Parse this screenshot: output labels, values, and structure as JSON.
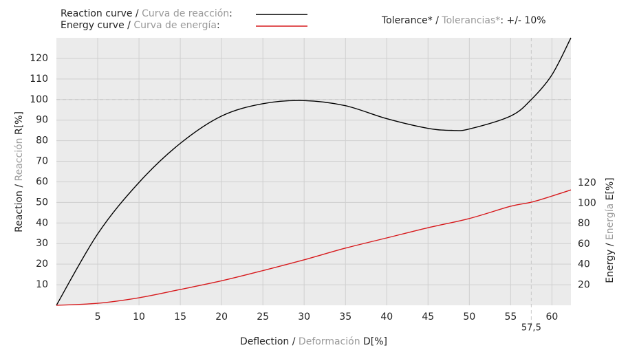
{
  "chart_data": {
    "type": "line",
    "x_label": "Deflection / Deformación D[%]",
    "y_label": "Reaction / Reacción R[%]",
    "y2_label": "Energy / Energía E[%]",
    "annotation": "Tolerance* / Tolerancias*: +/- 10%",
    "xlim": [
      0,
      62.3
    ],
    "xticks": [
      5,
      10,
      15,
      20,
      25,
      30,
      35,
      40,
      45,
      50,
      55,
      60
    ],
    "x_marker": {
      "value": 57.5,
      "label": "57,5"
    },
    "ylim": [
      0,
      130
    ],
    "yticks": [
      10,
      20,
      30,
      40,
      50,
      60,
      70,
      80,
      90,
      100,
      110,
      120
    ],
    "y_marker": 100,
    "y2lim": [
      0,
      262
    ],
    "y2ticks": [
      20,
      40,
      60,
      80,
      100,
      120
    ],
    "grid": true,
    "series": [
      {
        "name": "Reaction curve / Curva de reacción:",
        "color": "#000000",
        "x": [
          0,
          5,
          10,
          15,
          20,
          25,
          30,
          35,
          40,
          45,
          48,
          50,
          55,
          57.5,
          60,
          62.3
        ],
        "values": [
          0,
          34.7,
          59.7,
          78.7,
          92,
          98,
          99.5,
          97,
          90.7,
          86,
          85,
          85.7,
          92,
          100,
          112,
          130
        ]
      },
      {
        "name": "Energy curve / Curva de energía:",
        "color": "#d7191c",
        "axis": "y2",
        "x": [
          0,
          5,
          10,
          15,
          20,
          25,
          30,
          35,
          40,
          45,
          50,
          55,
          57.5,
          60,
          62.3
        ],
        "values": [
          0,
          2,
          7.4,
          15.5,
          24,
          34,
          44.6,
          56,
          66,
          76,
          85,
          97,
          101,
          107,
          113
        ]
      }
    ]
  }
}
